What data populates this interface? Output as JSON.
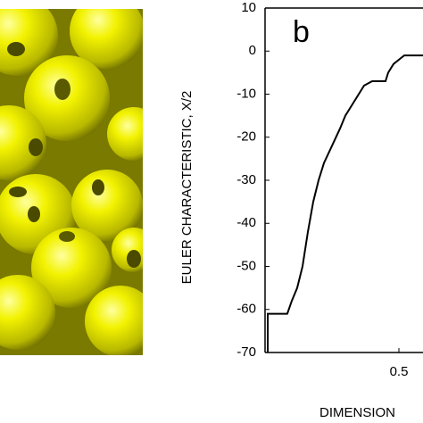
{
  "chart_data": {
    "type": "line",
    "annotation": "b",
    "x_label": "DIMENSION",
    "y_label": "EULER CHARACTERISTIC, X/2",
    "x": [
      0.01,
      0.01,
      0.083,
      0.1,
      0.12,
      0.14,
      0.16,
      0.18,
      0.2,
      0.22,
      0.25,
      0.28,
      0.3,
      0.33,
      0.35,
      0.37,
      0.4,
      0.45,
      0.46,
      0.48,
      0.5,
      0.52,
      0.59
    ],
    "series": [
      {
        "color": "#000000",
        "values": [
          -70,
          -61,
          -61,
          -58,
          -55,
          -50,
          -42,
          -35,
          -30,
          -26,
          -22,
          -18,
          -15,
          -12,
          -10,
          -8,
          -7,
          -7,
          -5,
          -3,
          -2,
          -1,
          -1
        ]
      }
    ],
    "xlim": [
      0,
      0.59
    ],
    "xticks": [
      0.5
    ],
    "ylim": [
      -70,
      10
    ],
    "yticks": [
      10,
      0,
      -10,
      -20,
      -30,
      -40,
      -50,
      -60,
      -70
    ]
  }
}
